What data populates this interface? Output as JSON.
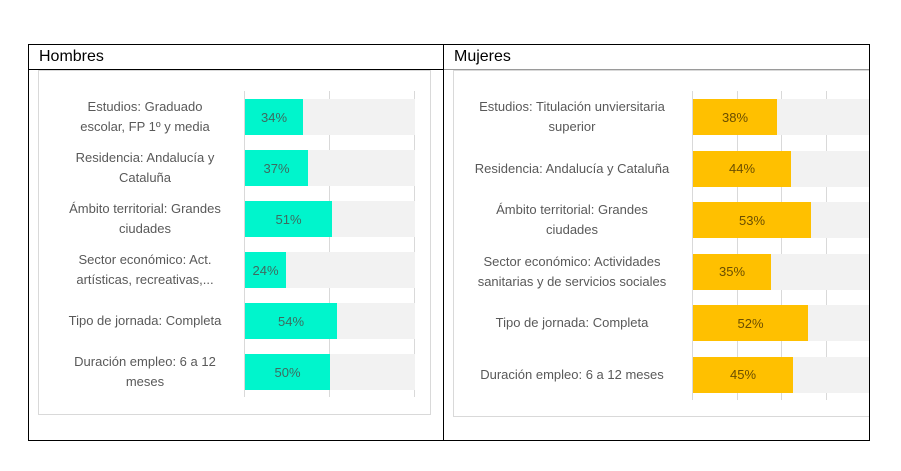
{
  "table": {
    "left_title": "Hombres",
    "right_title": "Mujeres"
  },
  "colors": {
    "men_bar": "#00F5CC",
    "women_bar": "#FFC000",
    "track": "#F2F2F2",
    "gridline": "#D9D9D9",
    "label_text": "#595959"
  },
  "chart_data": [
    {
      "type": "bar",
      "orientation": "horizontal",
      "title": "Hombres",
      "categories": [
        "Estudios: Graduado escolar, FP 1º y media",
        "Residencia: Andalucía y Cataluña",
        "Ámbito territorial: Grandes ciudades",
        "Sector económico: Act. artísticas, recreativas,...",
        "Tipo de jornada: Completa",
        "Duración empleo: 6 a 12 meses"
      ],
      "values": [
        34,
        37,
        51,
        24,
        54,
        50
      ],
      "value_labels": [
        "34%",
        "37%",
        "51%",
        "24%",
        "54%",
        "50%"
      ],
      "xlim": [
        0,
        100
      ],
      "grid": true,
      "bar_color": "#00F5CC",
      "background_track": "#F2F2F2"
    },
    {
      "type": "bar",
      "orientation": "horizontal",
      "title": "Mujeres",
      "categories": [
        "Estudios: Titulación unviersitaria superior",
        "Residencia: Andalucía y Cataluña",
        "Ámbito territorial: Grandes ciudades",
        "Sector económico: Actividades sanitarias y de servicios sociales",
        "Tipo de jornada: Completa",
        "Duración empleo: 6 a 12 meses"
      ],
      "values": [
        38,
        44,
        53,
        35,
        52,
        45
      ],
      "value_labels": [
        "38%",
        "44%",
        "53%",
        "35%",
        "52%",
        "45%"
      ],
      "xlim": [
        0,
        100
      ],
      "grid": true,
      "bar_color": "#FFC000",
      "background_track": "#F2F2F2"
    }
  ],
  "men": {
    "rows": [
      {
        "label_l1": "Estudios: Graduado",
        "label_l2": "escolar, FP 1º y media",
        "value": "34%"
      },
      {
        "label_l1": "Residencia: Andalucía y",
        "label_l2": "Cataluña",
        "value": "37%"
      },
      {
        "label_l1": "Ámbito territorial: Grandes",
        "label_l2": "ciudades",
        "value": "51%"
      },
      {
        "label_l1": "Sector económico: Act.",
        "label_l2": "artísticas, recreativas,...",
        "value": "24%"
      },
      {
        "label_l1": "Tipo de jornada: Completa",
        "label_l2": "",
        "value": "54%"
      },
      {
        "label_l1": "Duración empleo: 6 a 12",
        "label_l2": "meses",
        "value": "50%"
      }
    ]
  },
  "women": {
    "rows": [
      {
        "label_l1": "Estudios: Titulación unviersitaria",
        "label_l2": "superior",
        "value": "38%"
      },
      {
        "label_l1": "Residencia: Andalucía y Cataluña",
        "label_l2": "",
        "value": "44%"
      },
      {
        "label_l1": "Ámbito territorial: Grandes",
        "label_l2": "ciudades",
        "value": "53%"
      },
      {
        "label_l1": "Sector económico: Actividades",
        "label_l2": "sanitarias y de servicios sociales",
        "value": "35%"
      },
      {
        "label_l1": "Tipo de jornada: Completa",
        "label_l2": "",
        "value": "52%"
      },
      {
        "label_l1": "Duración empleo: 6 a 12 meses",
        "label_l2": "",
        "value": "45%"
      }
    ]
  }
}
